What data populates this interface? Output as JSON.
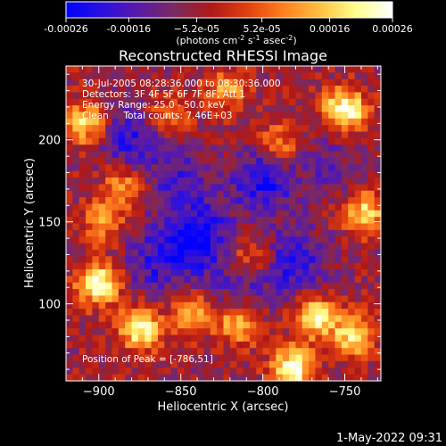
{
  "chart_data": {
    "type": "heatmap",
    "title": "Reconstructed RHESSI Image",
    "xlabel": "Heliocentric X (arcsec)",
    "ylabel": "Heliocentric Y (arcsec)",
    "xlim": [
      -920,
      -728
    ],
    "ylim": [
      53,
      245
    ],
    "x_ticks": [
      -900,
      -850,
      -800,
      -750
    ],
    "y_ticks": [
      100,
      150,
      200
    ],
    "colorbar": {
      "min": -0.00026,
      "max": 0.00026,
      "tick_values": [
        -0.00026,
        -0.00016,
        -5.2e-05,
        5.2e-05,
        0.00016,
        0.00026
      ],
      "tick_labels": [
        "-0.00026",
        "-0.00016",
        "−5.2e-05",
        "5.2e-05",
        "0.00016",
        "0.00026"
      ],
      "units": {
        "prefix": "(photons cm",
        "exp1": "-2",
        "mid1": " s",
        "exp2": "-1",
        "mid2": " asec",
        "exp3": "-2",
        "suffix": ")"
      },
      "colors": [
        "#0000ff",
        "#2a10e0",
        "#5a1aa8",
        "#7a2a60",
        "#b01818",
        "#e04010",
        "#ff8020",
        "#ffc040",
        "#ffff90",
        "#ffffff"
      ]
    },
    "annotations": [
      "30-Jul-2005 08:28:36.000 to 08:30:36.000",
      "Detectors: 3F 4F 5F 6F 7F 8F, Att 1",
      "Energy Range: 25.0 - 50.0 keV",
      "Clean     Total counts: 7.46E+03"
    ],
    "peak_label": "Position of Peak = [-786,51]",
    "peak_position": [
      -786,
      51
    ],
    "bright_regions": [
      {
        "x": -908,
        "y": 210,
        "value": 0.00018
      },
      {
        "x": -885,
        "y": 172,
        "value": 0.00012
      },
      {
        "x": -843,
        "y": 95,
        "value": 0.00014
      },
      {
        "x": -875,
        "y": 85,
        "value": 0.00022
      },
      {
        "x": -900,
        "y": 112,
        "value": 0.00024
      },
      {
        "x": -815,
        "y": 88,
        "value": 0.00016
      },
      {
        "x": -768,
        "y": 92,
        "value": 0.00022
      },
      {
        "x": -750,
        "y": 218,
        "value": 0.00026
      },
      {
        "x": -738,
        "y": 155,
        "value": 0.00018
      },
      {
        "x": -790,
        "y": 198,
        "value": 0.0001
      },
      {
        "x": -822,
        "y": 230,
        "value": 0.00012
      },
      {
        "x": -745,
        "y": 80,
        "value": 0.00018
      },
      {
        "x": -858,
        "y": 215,
        "value": 9e-05
      },
      {
        "x": -898,
        "y": 150,
        "value": 0.0001
      },
      {
        "x": -808,
        "y": 130,
        "value": 8e-05
      },
      {
        "x": -782,
        "y": 60,
        "value": 0.00026
      }
    ],
    "dark_regions": [
      {
        "x": -880,
        "y": 200,
        "value": -0.0002
      },
      {
        "x": -840,
        "y": 140,
        "value": -0.00026
      },
      {
        "x": -800,
        "y": 175,
        "value": -0.00022
      },
      {
        "x": -815,
        "y": 110,
        "value": -0.00014
      },
      {
        "x": -780,
        "y": 125,
        "value": -0.0002
      },
      {
        "x": -865,
        "y": 125,
        "value": -0.00018
      },
      {
        "x": -760,
        "y": 185,
        "value": -0.00012
      },
      {
        "x": -850,
        "y": 175,
        "value": -0.00016
      }
    ]
  },
  "footer": {
    "timestamp": "1-May-2022 09:31"
  }
}
